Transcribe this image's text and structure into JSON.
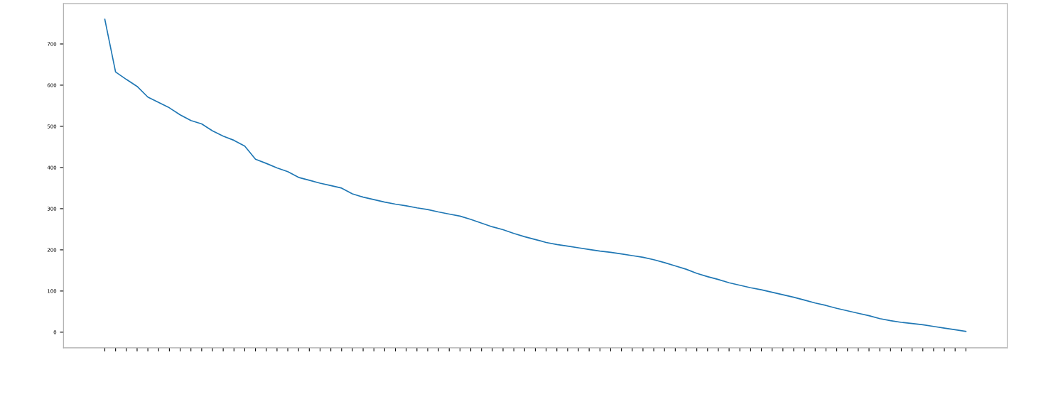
{
  "chart_data": {
    "type": "line",
    "categories": [
      null,
      null,
      null,
      null,
      null,
      null,
      null,
      null,
      null,
      null,
      null,
      null,
      null,
      null,
      null,
      null,
      null,
      null,
      null,
      null,
      null,
      null,
      null,
      null,
      null,
      null,
      null,
      null,
      null,
      null,
      null,
      null,
      null,
      null,
      null,
      null,
      null,
      null,
      null,
      null,
      null,
      null,
      null,
      null,
      null,
      null,
      null,
      null,
      null,
      null,
      null,
      null,
      null,
      null,
      null,
      null,
      null,
      null,
      null,
      null,
      null,
      null,
      null,
      null,
      null,
      null,
      null,
      null,
      null,
      null,
      null,
      null,
      null,
      null,
      null,
      null,
      null,
      null,
      null,
      null,
      null
    ],
    "series": [
      {
        "color": "#1f77b4",
        "values": [
          760,
          632,
          614,
          597,
          571,
          558,
          545,
          528,
          514,
          506,
          489,
          476,
          466,
          452,
          420,
          410,
          399,
          390,
          376,
          369,
          362,
          356,
          350,
          336,
          328,
          322,
          316,
          311,
          307,
          302,
          298,
          292,
          287,
          282,
          274,
          265,
          256,
          249,
          240,
          232,
          225,
          218,
          213,
          209,
          205,
          201,
          197,
          194,
          190,
          186,
          182,
          176,
          169,
          161,
          153,
          143,
          135,
          128,
          120,
          114,
          108,
          103,
          97,
          91,
          85,
          78,
          71,
          65,
          58,
          52,
          46,
          40,
          33,
          28,
          24,
          21,
          18,
          14,
          10,
          6,
          2
        ]
      }
    ],
    "ylim": [
      -38,
      798
    ],
    "yticks": [
      0,
      100,
      200,
      300,
      400,
      500,
      600,
      700
    ],
    "grid": false,
    "legend": false,
    "marker": "none",
    "line_style": "solid"
  }
}
